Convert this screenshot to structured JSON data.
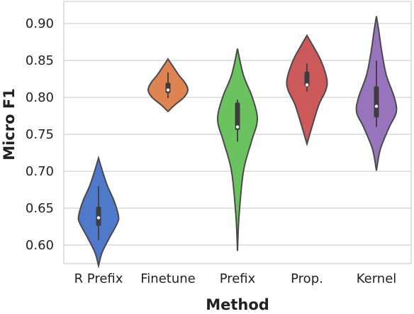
{
  "chart_data": {
    "type": "violin",
    "xlabel": "Method",
    "ylabel": "Micro F1",
    "ylim": [
      0.575,
      0.93
    ],
    "yticks": [
      "0.60",
      "0.65",
      "0.70",
      "0.75",
      "0.80",
      "0.85",
      "0.90"
    ],
    "grid": true,
    "series": [
      {
        "name": "R Prefix",
        "color": "#4f7acb",
        "min": 0.572,
        "max": 0.718,
        "q1": 0.626,
        "median": 0.637,
        "q3": 0.652,
        "whisker_low": 0.607,
        "whisker_high": 0.68,
        "profile": [
          [
            0.572,
            0.0
          ],
          [
            0.59,
            0.18
          ],
          [
            0.61,
            0.55
          ],
          [
            0.63,
            0.95
          ],
          [
            0.64,
            1.0
          ],
          [
            0.66,
            0.78
          ],
          [
            0.68,
            0.45
          ],
          [
            0.7,
            0.2
          ],
          [
            0.718,
            0.0
          ]
        ]
      },
      {
        "name": "Finetune",
        "color": "#de8452",
        "min": 0.781,
        "max": 0.852,
        "q1": 0.806,
        "median": 0.81,
        "q3": 0.82,
        "whisker_low": 0.799,
        "whisker_high": 0.834,
        "profile": [
          [
            0.781,
            0.0
          ],
          [
            0.79,
            0.35
          ],
          [
            0.8,
            0.8
          ],
          [
            0.81,
            1.0
          ],
          [
            0.82,
            0.85
          ],
          [
            0.83,
            0.55
          ],
          [
            0.84,
            0.3
          ],
          [
            0.852,
            0.0
          ]
        ]
      },
      {
        "name": "Prefix",
        "color": "#6ac35e",
        "min": 0.592,
        "max": 0.866,
        "q1": 0.756,
        "median": 0.76,
        "q3": 0.793,
        "whisker_low": 0.74,
        "whisker_high": 0.797,
        "profile": [
          [
            0.592,
            0.0
          ],
          [
            0.64,
            0.08
          ],
          [
            0.7,
            0.3
          ],
          [
            0.74,
            0.7
          ],
          [
            0.77,
            1.0
          ],
          [
            0.8,
            0.75
          ],
          [
            0.83,
            0.3
          ],
          [
            0.866,
            0.0
          ]
        ]
      },
      {
        "name": "Prop.",
        "color": "#cc5a5a",
        "min": 0.737,
        "max": 0.884,
        "q1": 0.815,
        "median": 0.817,
        "q3": 0.835,
        "whisker_low": 0.808,
        "whisker_high": 0.846,
        "profile": [
          [
            0.737,
            0.0
          ],
          [
            0.76,
            0.25
          ],
          [
            0.79,
            0.6
          ],
          [
            0.81,
            0.95
          ],
          [
            0.825,
            1.0
          ],
          [
            0.85,
            0.7
          ],
          [
            0.87,
            0.3
          ],
          [
            0.884,
            0.0
          ]
        ]
      },
      {
        "name": "Kernel",
        "color": "#9874bd",
        "min": 0.701,
        "max": 0.91,
        "q1": 0.773,
        "median": 0.788,
        "q3": 0.815,
        "whisker_low": 0.76,
        "whisker_high": 0.85,
        "profile": [
          [
            0.701,
            0.0
          ],
          [
            0.73,
            0.2
          ],
          [
            0.76,
            0.65
          ],
          [
            0.78,
            1.0
          ],
          [
            0.8,
            0.9
          ],
          [
            0.83,
            0.5
          ],
          [
            0.86,
            0.28
          ],
          [
            0.89,
            0.12
          ],
          [
            0.91,
            0.0
          ]
        ]
      }
    ]
  }
}
